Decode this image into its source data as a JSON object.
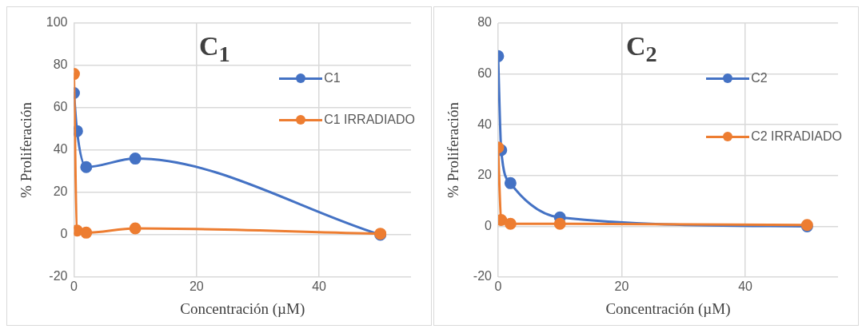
{
  "chart_data": [
    {
      "type": "line",
      "title": "C$_{1}$",
      "xlabel": "Concentración (µM)",
      "ylabel": "% Proliferación",
      "xlim": [
        0,
        55
      ],
      "xticks": [
        0,
        20,
        40
      ],
      "ylim": [
        -20,
        100
      ],
      "yticks": [
        -20,
        0,
        20,
        40,
        60,
        80,
        100
      ],
      "grid": true,
      "legend": "top right",
      "marker": "circle",
      "line_style": "solid",
      "series": [
        {
          "name": "C1",
          "color": "#4472c4",
          "x": [
            0,
            0.5,
            2,
            10,
            50
          ],
          "values": [
            67,
            49,
            32,
            36,
            0
          ]
        },
        {
          "name": "C1 IRRADIADO",
          "color": "#ed7d31",
          "x": [
            0,
            0.5,
            2,
            10,
            50
          ],
          "values": [
            76,
            2,
            1,
            3,
            0.5
          ]
        }
      ]
    },
    {
      "type": "line",
      "title": "C$_{2}$",
      "xlabel": "Concentración (µM)",
      "ylabel": "% Proliferación",
      "xlim": [
        0,
        55
      ],
      "xticks": [
        0,
        20,
        40
      ],
      "ylim": [
        -20,
        80
      ],
      "yticks": [
        -20,
        0,
        20,
        40,
        60,
        80
      ],
      "grid": true,
      "legend": "top right",
      "marker": "circle",
      "line_style": "solid",
      "series": [
        {
          "name": "C2",
          "color": "#4472c4",
          "x": [
            0,
            0.5,
            2,
            10,
            50
          ],
          "values": [
            67,
            30,
            17,
            3.5,
            0
          ]
        },
        {
          "name": "C2 IRRADIADO",
          "color": "#ed7d31",
          "x": [
            0,
            0.5,
            2,
            10,
            50
          ],
          "values": [
            31,
            2.5,
            1,
            1,
            0.5
          ]
        }
      ]
    }
  ]
}
